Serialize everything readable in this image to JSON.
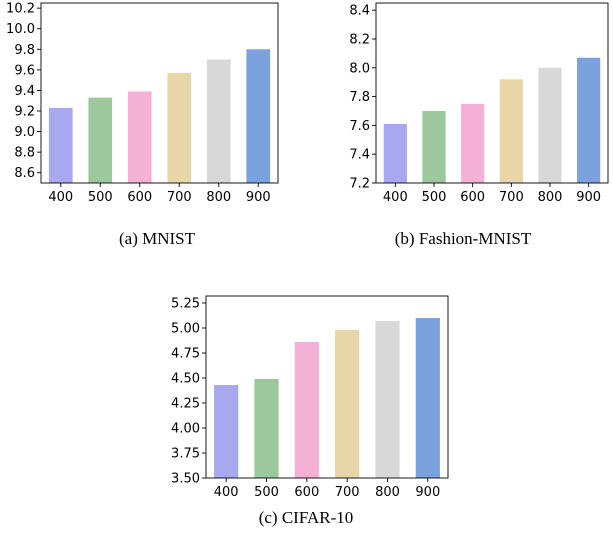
{
  "colors": [
    "#a8a8f0",
    "#9cc89c",
    "#f5b0d6",
    "#e8d6a8",
    "#d8d8d8",
    "#7ba2dc"
  ],
  "chart_data": [
    {
      "type": "bar",
      "caption": "(a)  MNIST",
      "categories": [
        "400",
        "500",
        "600",
        "700",
        "800",
        "900"
      ],
      "values": [
        9.23,
        9.33,
        9.39,
        9.57,
        9.7,
        9.8
      ],
      "ylim": [
        8.5,
        10.25
      ],
      "yticks": [
        "8.6",
        "8.8",
        "9.0",
        "9.2",
        "9.4",
        "9.6",
        "9.8",
        "10.0",
        "10.2"
      ],
      "title": "",
      "xlabel": "",
      "ylabel": "",
      "grid": false
    },
    {
      "type": "bar",
      "caption": "(b)  Fashion-MNIST",
      "categories": [
        "400",
        "500",
        "600",
        "700",
        "800",
        "900"
      ],
      "values": [
        7.61,
        7.7,
        7.75,
        7.92,
        8.0,
        8.07
      ],
      "ylim": [
        7.2,
        8.45
      ],
      "yticks": [
        "7.2",
        "7.4",
        "7.6",
        "7.8",
        "8.0",
        "8.2",
        "8.4"
      ],
      "title": "",
      "xlabel": "",
      "ylabel": "",
      "grid": false
    },
    {
      "type": "bar",
      "caption": "(c)  CIFAR-10",
      "categories": [
        "400",
        "500",
        "600",
        "700",
        "800",
        "900"
      ],
      "values": [
        4.43,
        4.49,
        4.86,
        4.98,
        5.07,
        5.1
      ],
      "ylim": [
        3.5,
        5.32
      ],
      "yticks": [
        "3.50",
        "3.75",
        "4.00",
        "4.25",
        "4.50",
        "4.75",
        "5.00",
        "5.25"
      ],
      "title": "",
      "xlabel": "",
      "ylabel": "",
      "grid": false
    }
  ]
}
